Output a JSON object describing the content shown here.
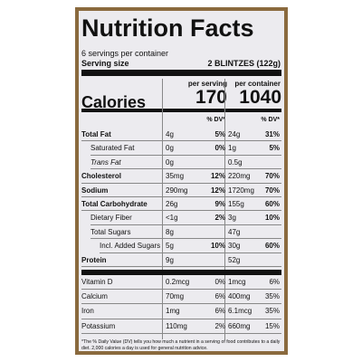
{
  "header": {
    "title": "Nutrition Facts",
    "servings": "6 servings per container",
    "serving_size_label": "Serving size",
    "serving_size": "2 BLINTZES (122g)"
  },
  "columns": {
    "per_serving": "per serving",
    "per_container": "per container",
    "dv_serving": "% DV*",
    "dv_container": "% DV*"
  },
  "calories": {
    "label": "Calories",
    "serving": "170",
    "container": "1040"
  },
  "rows": [
    {
      "name": "Total Fat",
      "serving": "4g",
      "serving_dv": "5%",
      "container": "24g",
      "container_dv": "31%"
    },
    {
      "name": "Saturated Fat",
      "serving": "0g",
      "serving_dv": "0%",
      "container": "1g",
      "container_dv": "5%"
    },
    {
      "name": "Trans Fat",
      "serving": "0g",
      "container": "0.5g"
    },
    {
      "name": "Cholesterol",
      "serving": "35mg",
      "serving_dv": "12%",
      "container": "220mg",
      "container_dv": "70%"
    },
    {
      "name": "Sodium",
      "serving": "290mg",
      "serving_dv": "12%",
      "container": "1720mg",
      "container_dv": "70%"
    },
    {
      "name": "Total Carbohydrate",
      "serving": "26g",
      "serving_dv": "9%",
      "container": "155g",
      "container_dv": "60%"
    },
    {
      "name": "Dietary Fiber",
      "serving": "<1g",
      "serving_dv": "2%",
      "container": "3g",
      "container_dv": "10%"
    },
    {
      "name": "Total Sugars",
      "serving": "8g",
      "container": "47g"
    },
    {
      "name": "Incl. Added Sugars",
      "serving": "5g",
      "serving_dv": "10%",
      "container": "30g",
      "container_dv": "60%"
    },
    {
      "name": "Protein",
      "serving": "9g",
      "container": "52g"
    }
  ],
  "micros": [
    {
      "name": "Vitamin D",
      "serving": "0.2mcg",
      "serving_dv": "0%",
      "container": "1mcg",
      "container_dv": "6%"
    },
    {
      "name": "Calcium",
      "serving": "70mg",
      "serving_dv": "6%",
      "container": "400mg",
      "container_dv": "35%"
    },
    {
      "name": "Iron",
      "serving": "1mg",
      "serving_dv": "6%",
      "container": "6.1mcg",
      "container_dv": "35%"
    },
    {
      "name": "Potassium",
      "serving": "110mg",
      "serving_dv": "2%",
      "container": "660mg",
      "container_dv": "15%"
    }
  ],
  "footnote": "*The % Daily Value (DV) tells you how much a nutrient in a serving of food contributes to a daily diet. 2,000 calories a day is used for general nutrition advice."
}
